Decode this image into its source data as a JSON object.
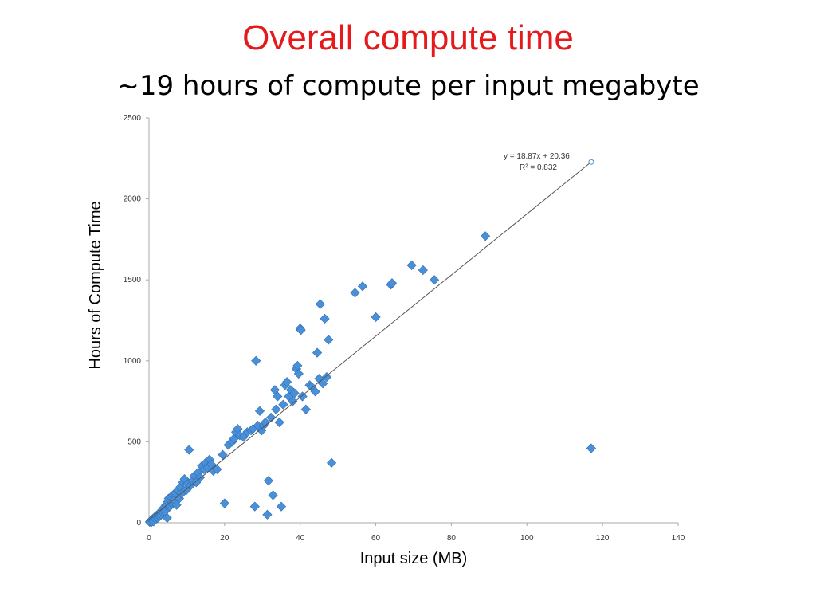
{
  "slide": {
    "title": "Overall compute time",
    "title_color": "#e41a1c",
    "subtitle": "~19 hours of compute per input megabyte"
  },
  "chart_data": {
    "type": "scatter",
    "title": "",
    "xlabel": "Input size (MB)",
    "ylabel": "Hours of Compute Time",
    "xlim": [
      0,
      140
    ],
    "ylim": [
      0,
      2500
    ],
    "xticks": [
      0,
      20,
      40,
      60,
      80,
      100,
      120,
      140
    ],
    "yticks": [
      0,
      500,
      1000,
      1500,
      2000,
      2500
    ],
    "grid": false,
    "marker_color": "#4a90d9",
    "trendline": {
      "equation": "y = 18.87x + 20.36",
      "r_squared": "R² = 0.832",
      "slope": 18.87,
      "intercept": 20.36,
      "x_range": [
        0,
        117
      ]
    },
    "series": [
      {
        "points": [
          [
            0.2,
            5
          ],
          [
            0.4,
            12
          ],
          [
            0.6,
            3
          ],
          [
            0.8,
            18
          ],
          [
            1.0,
            25
          ],
          [
            1.2,
            8
          ],
          [
            1.5,
            35
          ],
          [
            1.8,
            22
          ],
          [
            2.0,
            45
          ],
          [
            2.3,
            30
          ],
          [
            2.5,
            55
          ],
          [
            2.8,
            40
          ],
          [
            3.0,
            65
          ],
          [
            3.2,
            50
          ],
          [
            3.5,
            80
          ],
          [
            3.8,
            60
          ],
          [
            4.0,
            95
          ],
          [
            4.2,
            70
          ],
          [
            4.5,
            110
          ],
          [
            4.8,
            30
          ],
          [
            5.0,
            130
          ],
          [
            5.2,
            150
          ],
          [
            5.5,
            100
          ],
          [
            5.8,
            160
          ],
          [
            6.0,
            120
          ],
          [
            6.3,
            170
          ],
          [
            6.6,
            140
          ],
          [
            7.0,
            180
          ],
          [
            7.3,
            110
          ],
          [
            7.6,
            200
          ],
          [
            8.0,
            150
          ],
          [
            8.3,
            220
          ],
          [
            8.6,
            180
          ],
          [
            9.0,
            250
          ],
          [
            9.4,
            270
          ],
          [
            9.8,
            200
          ],
          [
            10.2,
            240
          ],
          [
            10.6,
            450
          ],
          [
            11.0,
            230
          ],
          [
            11.5,
            260
          ],
          [
            12.0,
            290
          ],
          [
            12.5,
            250
          ],
          [
            13.0,
            310
          ],
          [
            13.5,
            280
          ],
          [
            14.0,
            350
          ],
          [
            14.5,
            330
          ],
          [
            15.0,
            370
          ],
          [
            15.5,
            340
          ],
          [
            16.0,
            390
          ],
          [
            16.5,
            360
          ],
          [
            17.0,
            320
          ],
          [
            18.0,
            330
          ],
          [
            19.5,
            420
          ],
          [
            20.0,
            120
          ],
          [
            21.0,
            480
          ],
          [
            22.0,
            500
          ],
          [
            22.5,
            520
          ],
          [
            23.0,
            560
          ],
          [
            23.5,
            580
          ],
          [
            24.0,
            540
          ],
          [
            25.0,
            530
          ],
          [
            26.0,
            560
          ],
          [
            27.0,
            570
          ],
          [
            27.5,
            580
          ],
          [
            28.0,
            100
          ],
          [
            28.3,
            1000
          ],
          [
            28.8,
            600
          ],
          [
            29.3,
            690
          ],
          [
            29.8,
            570
          ],
          [
            30.3,
            600
          ],
          [
            30.8,
            620
          ],
          [
            31.3,
            50
          ],
          [
            31.6,
            260
          ],
          [
            32.3,
            650
          ],
          [
            32.8,
            170
          ],
          [
            33.3,
            820
          ],
          [
            33.6,
            700
          ],
          [
            34.0,
            780
          ],
          [
            34.5,
            620
          ],
          [
            35.0,
            100
          ],
          [
            35.5,
            730
          ],
          [
            36.0,
            850
          ],
          [
            36.5,
            870
          ],
          [
            37.0,
            780
          ],
          [
            37.5,
            820
          ],
          [
            38.0,
            750
          ],
          [
            38.5,
            800
          ],
          [
            39.0,
            950
          ],
          [
            39.3,
            970
          ],
          [
            39.6,
            920
          ],
          [
            40.0,
            1200
          ],
          [
            40.2,
            1190
          ],
          [
            40.6,
            780
          ],
          [
            41.5,
            700
          ],
          [
            42.5,
            850
          ],
          [
            43.0,
            840
          ],
          [
            44.0,
            810
          ],
          [
            44.5,
            1050
          ],
          [
            45.0,
            890
          ],
          [
            45.3,
            1350
          ],
          [
            46.0,
            860
          ],
          [
            46.5,
            1260
          ],
          [
            47.0,
            900
          ],
          [
            47.5,
            1130
          ],
          [
            48.3,
            370
          ],
          [
            54.5,
            1420
          ],
          [
            56.5,
            1460
          ],
          [
            60.0,
            1270
          ],
          [
            64.0,
            1470
          ],
          [
            64.3,
            1480
          ],
          [
            69.5,
            1590
          ],
          [
            72.5,
            1560
          ],
          [
            75.5,
            1500
          ],
          [
            89.0,
            1770
          ],
          [
            117.0,
            460
          ]
        ]
      }
    ]
  }
}
